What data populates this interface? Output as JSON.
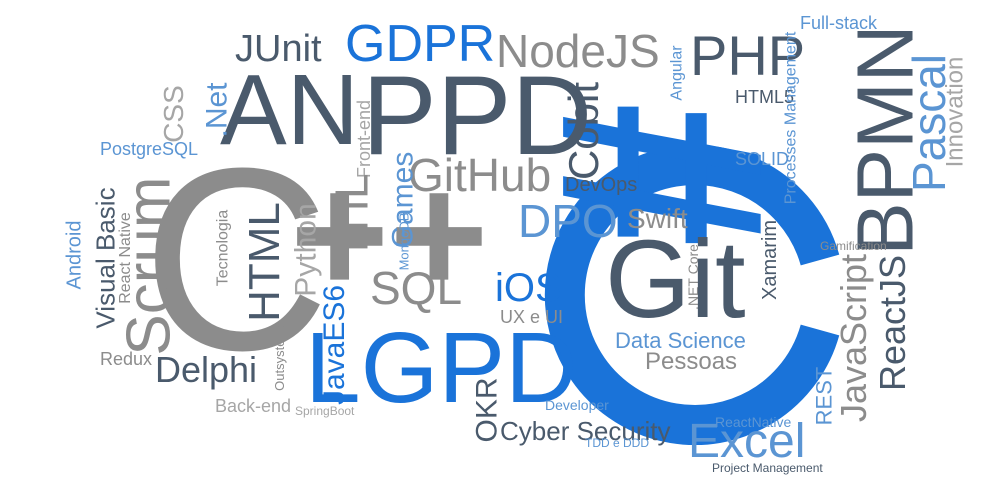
{
  "words": [
    {
      "text": "JUnit",
      "color": "#4a5a6c"
    },
    {
      "text": "GDPR",
      "color": "#1a73d9"
    },
    {
      "text": "NodeJS",
      "color": "#8c8c8c"
    },
    {
      "text": "PHP",
      "color": "#4a5a6c"
    },
    {
      "text": "Full-stack",
      "color": "#5b95d3"
    },
    {
      "text": "Angular",
      "color": "#5b95d3"
    },
    {
      "text": "AN",
      "color": "#4a5a6c"
    },
    {
      "text": "PPD",
      "color": "#4a5a6c"
    },
    {
      "text": "CSS",
      "color": "#a6a6a6"
    },
    {
      "text": ".Net",
      "color": "#5b95d3"
    },
    {
      "text": "PostgreSQL",
      "color": "#5b95d3"
    },
    {
      "text": "Front-end",
      "color": "#a6a6a6"
    },
    {
      "text": "Cobit",
      "color": "#4a5a6c"
    },
    {
      "text": "HTML5",
      "color": "#4a5a6c"
    },
    {
      "text": "SOLID",
      "color": "#5b95d3"
    },
    {
      "text": "Processes Management",
      "color": "#5b95d3"
    },
    {
      "text": "BPMN",
      "color": "#4a5a6c"
    },
    {
      "text": "Pascal",
      "color": "#5b95d3"
    },
    {
      "text": "Innovation",
      "color": "#a6a6a6"
    },
    {
      "text": "GitHub",
      "color": "#8c8c8c"
    },
    {
      "text": "DevOps",
      "color": "#4a5a6c"
    },
    {
      "text": "Scrum",
      "color": "#8c8c8c"
    },
    {
      "text": "Visual Basic",
      "color": "#4a5a6c"
    },
    {
      "text": "React Native",
      "color": "#8c8c8c"
    },
    {
      "text": "Android",
      "color": "#5b95d3"
    },
    {
      "text": "Tecnologia",
      "color": "#8c8c8c"
    },
    {
      "text": "HTML",
      "color": "#4a5a6c"
    },
    {
      "text": "Python",
      "color": "#a6a6a6"
    },
    {
      "text": "ITIL",
      "color": "#8c8c8c"
    },
    {
      "text": "Games",
      "color": "#5b95d3"
    },
    {
      "text": "MongoDB",
      "color": "#5b95d3"
    },
    {
      "text": "DPO",
      "color": "#5b95d3"
    },
    {
      "text": "Swift",
      "color": "#8c8c8c"
    },
    {
      "text": "Xamarim",
      "color": "#4a5a6c"
    },
    {
      "text": "Gamification",
      "color": "#8c8c8c"
    },
    {
      "text": "JavaScript",
      "color": "#8c8c8c"
    },
    {
      "text": "ReactJS",
      "color": "#4a5a6c"
    },
    {
      "text": "REST",
      "color": "#5b95d3"
    },
    {
      "text": "SQL",
      "color": "#8c8c8c"
    },
    {
      "text": "iOS",
      "color": "#1a73d9"
    },
    {
      "text": ".NET Core",
      "color": "#8c8c8c"
    },
    {
      "text": "UX e UI",
      "color": "#8c8c8c"
    },
    {
      "text": "JavaES6",
      "color": "#1a73d9"
    },
    {
      "text": "Outsystems",
      "color": "#8c8c8c"
    },
    {
      "text": "Redux",
      "color": "#8c8c8c"
    },
    {
      "text": "Delphi",
      "color": "#4a5a6c"
    },
    {
      "text": "Back-end",
      "color": "#a6a6a6"
    },
    {
      "text": "SpringBoot",
      "color": "#a6a6a6"
    },
    {
      "text": "LGPD",
      "color": "#1a73d9"
    },
    {
      "text": "Data Science",
      "color": "#5b95d3"
    },
    {
      "text": "Pessoas",
      "color": "#8c8c8c"
    },
    {
      "text": "OKR",
      "color": "#4a5a6c"
    },
    {
      "text": "Cyber Security",
      "color": "#4a5a6c"
    },
    {
      "text": "Developer",
      "color": "#5b95d3"
    },
    {
      "text": "TDD e DDD",
      "color": "#5b95d3"
    },
    {
      "text": "ReactNative",
      "color": "#5b95d3"
    },
    {
      "text": "Excel",
      "color": "#5b95d3"
    },
    {
      "text": "Project Management",
      "color": "#4a5a6c"
    },
    {
      "text": "Git",
      "color": "#4a5a6c"
    },
    {
      "text": "C",
      "color": "#8c8c8c"
    },
    {
      "text": "++",
      "color": "#8c8c8c"
    },
    {
      "text": "#",
      "color": "#1a73d9"
    }
  ]
}
